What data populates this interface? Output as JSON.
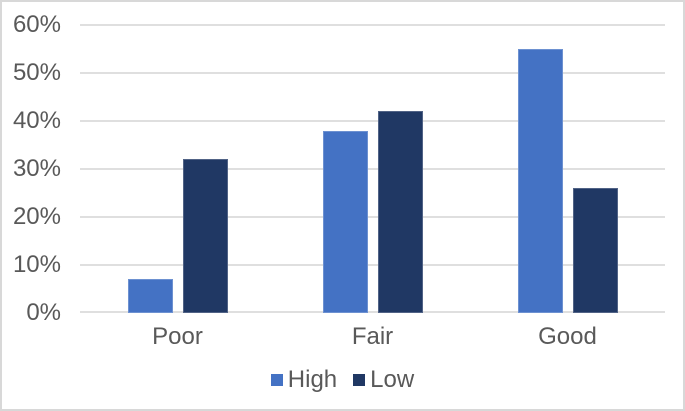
{
  "figure": {
    "background": "#ffffff",
    "border_color": "#d8d8d8"
  },
  "chart_data": {
    "type": "bar",
    "title": "",
    "xlabel": "",
    "ylabel": "",
    "categories": [
      "Poor",
      "Fair",
      "Good"
    ],
    "series": [
      {
        "name": "High",
        "color": "#4472C4",
        "values": [
          7,
          38,
          55
        ]
      },
      {
        "name": "Low",
        "color": "#203864",
        "values": [
          32,
          42,
          26
        ]
      }
    ],
    "ylim": [
      0,
      60
    ],
    "ytick_step": 10,
    "ytick_suffix": "%",
    "grid": true,
    "legend_position": "bottom",
    "axis_text_color": "#595959",
    "gridline_color": "#dfdfdf"
  }
}
